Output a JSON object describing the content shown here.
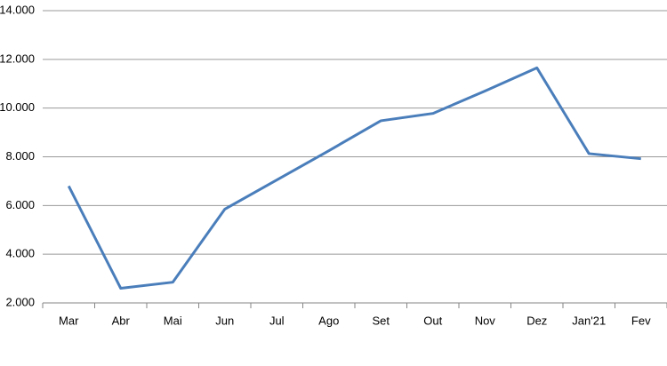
{
  "chart_data": {
    "type": "line",
    "categories": [
      "Mar",
      "Abr",
      "Mai",
      "Jun",
      "Jul",
      "Ago",
      "Set",
      "Out",
      "Nov",
      "Dez",
      "Jan'21",
      "Fev"
    ],
    "series": [
      {
        "color": "#4a7ebb",
        "values": [
          6800,
          2600,
          2850,
          5850,
          7050,
          8250,
          9480,
          9780,
          10700,
          11650,
          8130,
          7920
        ]
      }
    ],
    "ylim": [
      2000,
      14000
    ],
    "yticks": [
      {
        "value": 2000,
        "label": "2.000"
      },
      {
        "value": 4000,
        "label": "4.000"
      },
      {
        "value": 6000,
        "label": "6.000"
      },
      {
        "value": 8000,
        "label": "8.000"
      },
      {
        "value": 10000,
        "label": "10.000"
      },
      {
        "value": 12000,
        "label": "12.000"
      },
      {
        "value": 14000,
        "label": "14.000"
      }
    ],
    "grid": true
  }
}
